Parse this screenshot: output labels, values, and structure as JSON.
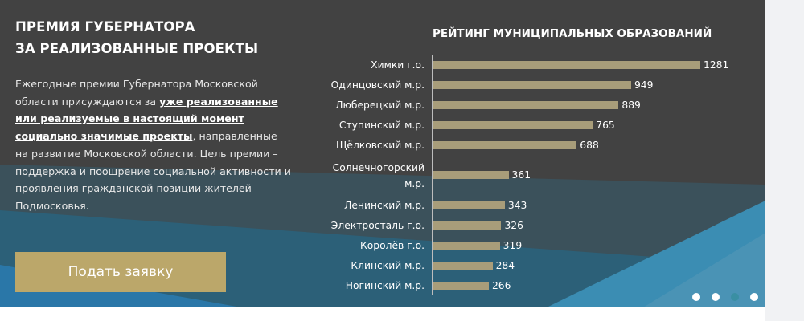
{
  "header": {
    "title_line1": "ПРЕМИЯ ГУБЕРНАТОРА",
    "title_line2": "ЗА РЕАЛИЗОВАННЫЕ ПРОЕКТЫ"
  },
  "description": {
    "part1": "Ежегодные премии Губернатора Московской области присуждаются за ",
    "bold": "уже реализованные или реализуемые в настоящий момент социально значимые проекты",
    "part2": ", направленные на развитие Московской области. Цель премии – поддержка и поощрение социальной активности и проявления гражданской позиции жителей Подмосковья."
  },
  "apply_button": "Подать заявку",
  "colors": {
    "bar": "#a89d7a",
    "button": "#bba76a",
    "background": "#424242"
  },
  "chart_data": {
    "type": "bar",
    "orientation": "horizontal",
    "title": "РЕЙТИНГ МУНИЦИПАЛЬНЫХ ОБРАЗОВАНИЙ",
    "categories": [
      "Химки г.о.",
      "Одинцовский м.р.",
      "Люберецкий м.р.",
      "Ступинский м.р.",
      "Щёлковский м.р.",
      "Солнечногорский м.р.",
      "Ленинский м.р.",
      "Электросталь г.о.",
      "Королёв г.о.",
      "Клинский м.р.",
      "Ногинский м.р."
    ],
    "values": [
      1281,
      949,
      889,
      765,
      688,
      361,
      343,
      326,
      319,
      284,
      266
    ],
    "xlim": [
      0,
      1281
    ],
    "grid": false
  },
  "carousel": {
    "count": 4,
    "active": 3
  }
}
